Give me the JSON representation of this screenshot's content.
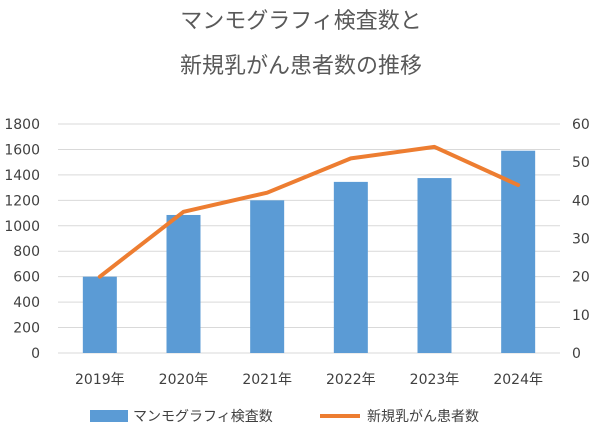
{
  "chart_data": {
    "type": "bar",
    "title_lines": [
      "マンモグラフィ検査数と",
      "新規乳がん患者数の推移"
    ],
    "categories": [
      "2019年",
      "2020年",
      "2021年",
      "2022年",
      "2023年",
      "2024年"
    ],
    "series": [
      {
        "name": "マンモグラフィ検査数",
        "type": "bar",
        "axis": "left",
        "color": "#5b9bd5",
        "values": [
          600,
          1085,
          1200,
          1345,
          1375,
          1590
        ]
      },
      {
        "name": "新規乳がん患者数",
        "type": "line",
        "axis": "right",
        "color": "#ed7d31",
        "values": [
          20,
          37,
          42,
          51,
          54,
          44
        ]
      }
    ],
    "y_left": {
      "min": 0,
      "max": 1800,
      "step": 200,
      "ticks": [
        "0",
        "200",
        "400",
        "600",
        "800",
        "1000",
        "1200",
        "1400",
        "1600",
        "1800"
      ]
    },
    "y_right": {
      "min": 0,
      "max": 60,
      "step": 10,
      "ticks": [
        "0",
        "10",
        "20",
        "30",
        "40",
        "50",
        "60"
      ]
    },
    "grid": true,
    "legend_position": "bottom"
  }
}
